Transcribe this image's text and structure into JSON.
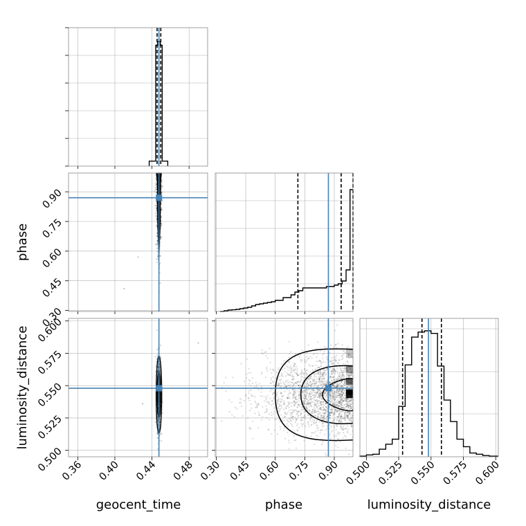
{
  "chart_data": {
    "type": "scatter",
    "chart_kind": "corner",
    "parameters": [
      "geocent_time",
      "phase",
      "luminosity_distance"
    ],
    "truths": {
      "geocent_time": 0.4475,
      "phase": 0.87,
      "luminosity_distance": 0.548
    },
    "quantiles": {
      "geocent_time": [
        0.4455,
        0.4475,
        0.4495
      ],
      "phase": [
        0.715,
        0.935,
        0.995
      ],
      "luminosity_distance": [
        0.528,
        0.543,
        0.558
      ]
    },
    "ranges": {
      "geocent_time": [
        0.35,
        0.5
      ],
      "phase": [
        0.295,
        0.995
      ],
      "luminosity_distance": [
        0.495,
        0.602
      ]
    },
    "ticks": {
      "geocent_time": [
        "0.36",
        "0.40",
        "0.44",
        "0.48"
      ],
      "phase": [
        "0.30",
        "0.45",
        "0.60",
        "0.75",
        "0.90"
      ],
      "luminosity_distance": [
        "0.500",
        "0.525",
        "0.550",
        "0.575",
        "0.600"
      ]
    },
    "histograms": {
      "geocent_time": {
        "bins": [
          [
            0.437,
            0.444,
            0.04
          ],
          [
            0.444,
            0.446,
            0.97
          ],
          [
            0.446,
            0.449,
            1.0
          ],
          [
            0.449,
            0.451,
            0.97
          ],
          [
            0.451,
            0.457,
            0.04
          ]
        ]
      },
      "phase": {
        "x": [
          0.32,
          0.34,
          0.36,
          0.38,
          0.4,
          0.42,
          0.44,
          0.46,
          0.48,
          0.5,
          0.52,
          0.54,
          0.56,
          0.58,
          0.6,
          0.62,
          0.64,
          0.66,
          0.68,
          0.7,
          0.72,
          0.74,
          0.76,
          0.78,
          0.8,
          0.82,
          0.84,
          0.86,
          0.88,
          0.9,
          0.92,
          0.94,
          0.96,
          0.98,
          0.995
        ],
        "y": [
          0.0,
          0.005,
          0.01,
          0.012,
          0.015,
          0.02,
          0.025,
          0.03,
          0.04,
          0.05,
          0.055,
          0.06,
          0.065,
          0.07,
          0.08,
          0.08,
          0.1,
          0.1,
          0.12,
          0.14,
          0.15,
          0.17,
          0.17,
          0.17,
          0.17,
          0.17,
          0.17,
          0.18,
          0.18,
          0.19,
          0.2,
          0.22,
          0.3,
          0.88,
          0.88
        ]
      },
      "luminosity_distance": {
        "x": [
          0.495,
          0.5,
          0.505,
          0.51,
          0.515,
          0.52,
          0.525,
          0.53,
          0.535,
          0.54,
          0.545,
          0.55,
          0.555,
          0.56,
          0.565,
          0.57,
          0.575,
          0.58,
          0.585,
          0.59,
          0.595,
          0.602
        ],
        "y": [
          0.005,
          0.015,
          0.02,
          0.06,
          0.1,
          0.14,
          0.4,
          0.73,
          0.95,
          0.99,
          1.0,
          0.98,
          0.72,
          0.45,
          0.28,
          0.14,
          0.08,
          0.03,
          0.02,
          0.01,
          0.005,
          0.0
        ]
      }
    },
    "contours_2d": {
      "phase_vs_geocent_time": {
        "center": 0.4475,
        "halfwidths": [
          0.0015,
          0.0028
        ]
      },
      "luminosity_distance_vs_geocent_time": {
        "center_x": 0.4475,
        "center_y": 0.543,
        "half_x": [
          0.0018,
          0.003
        ],
        "half_y": [
          0.018,
          0.03
        ]
      },
      "luminosity_distance_vs_phase": {
        "center_y": 0.543,
        "half_y": [
          0.012,
          0.022,
          0.035
        ],
        "x_start": [
          0.84,
          0.73,
          0.6
        ]
      }
    },
    "colors": {
      "truth": "#4682b4",
      "quantile": "#000000",
      "hist": "#000000",
      "points": "#000000"
    }
  }
}
